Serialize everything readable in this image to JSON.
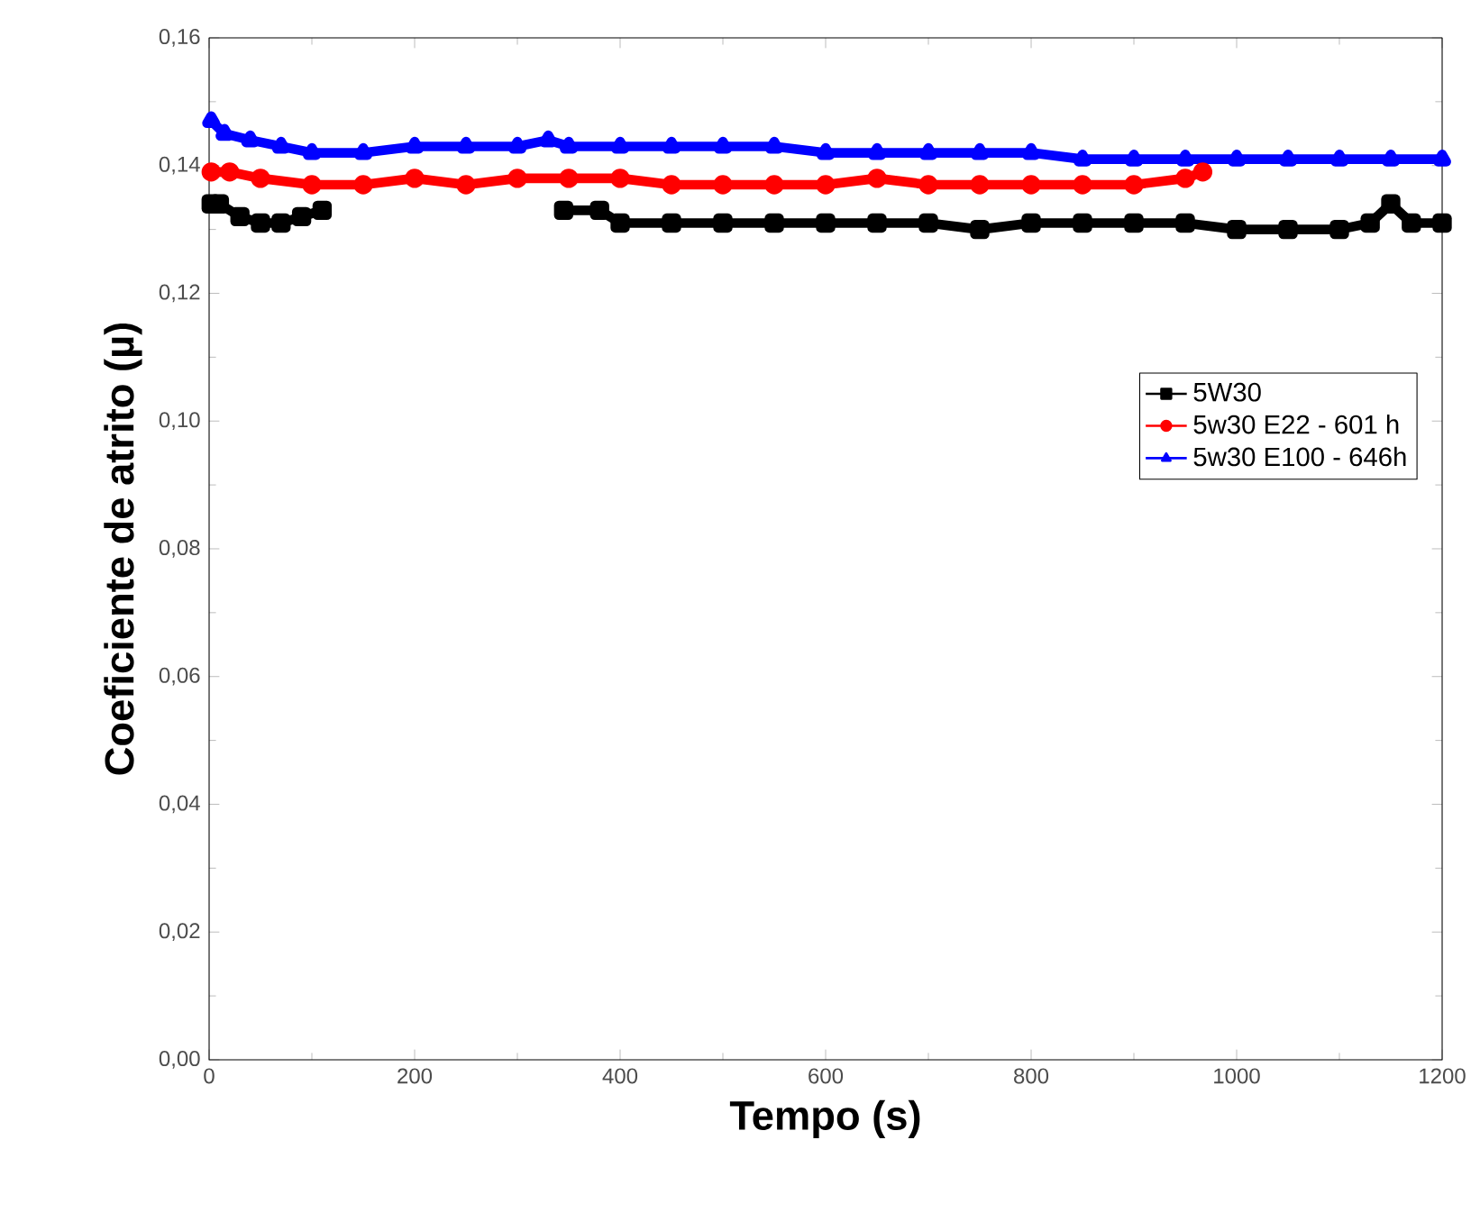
{
  "chart_data": {
    "type": "line",
    "xlabel": "Tempo (s)",
    "ylabel": "Coeficiente de atrito (µ)",
    "xlim": [
      0,
      1200
    ],
    "ylim": [
      0,
      0.16
    ],
    "xticks": [
      0,
      200,
      400,
      600,
      800,
      1000,
      1200
    ],
    "yticks": [
      {
        "value": 0,
        "label": "0,00"
      },
      {
        "value": 0.02,
        "label": "0,02"
      },
      {
        "value": 0.04,
        "label": "0,04"
      },
      {
        "value": 0.06,
        "label": "0,06"
      },
      {
        "value": 0.08,
        "label": "0,08"
      },
      {
        "value": 0.1,
        "label": "0,10"
      },
      {
        "value": 0.12,
        "label": "0,12"
      },
      {
        "value": 0.14,
        "label": "0,14"
      },
      {
        "value": 0.16,
        "label": "0,16"
      }
    ],
    "grid": false,
    "legend": "right",
    "series": [
      {
        "name": "5W30",
        "color": "#000000",
        "marker": "square",
        "x": [
          2,
          10,
          30,
          50,
          70,
          90,
          110,
          120,
          200,
          300,
          345,
          380,
          400,
          450,
          500,
          550,
          600,
          650,
          700,
          750,
          800,
          850,
          900,
          950,
          1000,
          1050,
          1100,
          1130,
          1150,
          1170,
          1200
        ],
        "values": [
          0.134,
          0.134,
          0.132,
          0.131,
          0.131,
          0.132,
          0.133,
          null,
          null,
          null,
          0.133,
          0.133,
          0.131,
          0.131,
          0.131,
          0.131,
          0.131,
          0.131,
          0.131,
          0.13,
          0.131,
          0.131,
          0.131,
          0.131,
          0.13,
          0.13,
          0.13,
          0.131,
          0.134,
          0.131,
          0.131
        ]
      },
      {
        "name": "5w30 E22 - 601 h",
        "color": "#ff0000",
        "marker": "circle",
        "x": [
          2,
          20,
          50,
          100,
          150,
          200,
          250,
          300,
          350,
          400,
          450,
          500,
          550,
          600,
          650,
          700,
          750,
          800,
          850,
          900,
          950,
          967
        ],
        "values": [
          0.139,
          0.139,
          0.138,
          0.137,
          0.137,
          0.138,
          0.137,
          0.138,
          0.138,
          0.138,
          0.137,
          0.137,
          0.137,
          0.137,
          0.138,
          0.137,
          0.137,
          0.137,
          0.137,
          0.137,
          0.138,
          0.139
        ]
      },
      {
        "name": "5w30 E100 - 646h",
        "color": "#0000ff",
        "marker": "triangle",
        "x": [
          2,
          15,
          40,
          70,
          100,
          150,
          200,
          250,
          300,
          330,
          350,
          400,
          450,
          500,
          550,
          600,
          650,
          700,
          750,
          800,
          850,
          900,
          950,
          1000,
          1050,
          1100,
          1150,
          1200
        ],
        "values": [
          0.147,
          0.145,
          0.144,
          0.143,
          0.142,
          0.142,
          0.143,
          0.143,
          0.143,
          0.144,
          0.143,
          0.143,
          0.143,
          0.143,
          0.143,
          0.142,
          0.142,
          0.142,
          0.142,
          0.142,
          0.141,
          0.141,
          0.141,
          0.141,
          0.141,
          0.141,
          0.141,
          0.141
        ]
      }
    ]
  }
}
